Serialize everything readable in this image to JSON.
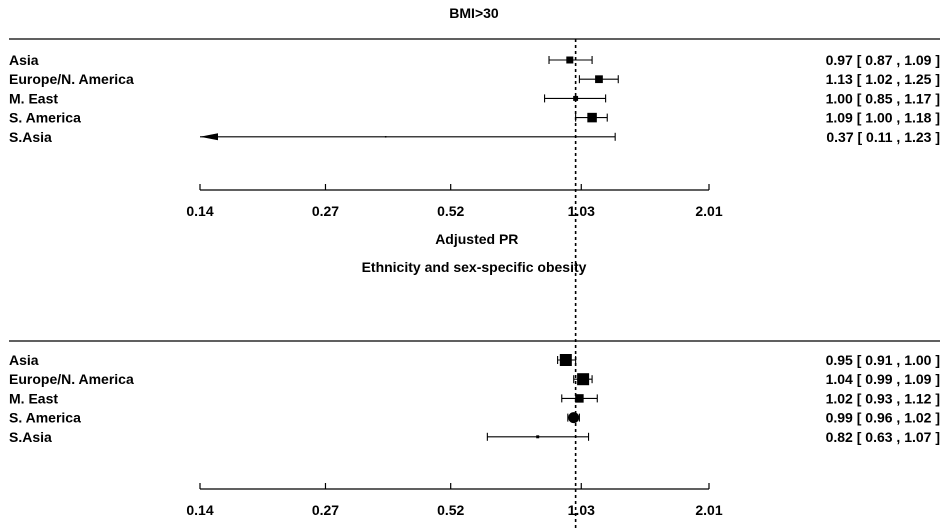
{
  "chart_data": [
    {
      "type": "forest",
      "title": "BMI>30",
      "xlabel": "Adjusted PR",
      "x_scale": "log",
      "xticks": [
        "0.14",
        "0.27",
        "0.52",
        "1.03",
        "2.01"
      ],
      "reference_line": 1.0,
      "rows": [
        {
          "label": "Asia",
          "estimate": 0.97,
          "lower": 0.87,
          "upper": 1.09,
          "text": "0.97 [ 0.87 , 1.09 ]"
        },
        {
          "label": "Europe/N. America",
          "estimate": 1.13,
          "lower": 1.02,
          "upper": 1.25,
          "text": "1.13 [ 1.02 , 1.25 ]"
        },
        {
          "label": "M. East",
          "estimate": 1.0,
          "lower": 0.85,
          "upper": 1.17,
          "text": "1.00 [ 0.85 , 1.17 ]"
        },
        {
          "label": "S. America",
          "estimate": 1.09,
          "lower": 1.0,
          "upper": 1.18,
          "text": "1.09 [ 1.00 , 1.18 ]"
        },
        {
          "label": "S.Asia",
          "estimate": 0.37,
          "lower": 0.11,
          "upper": 1.23,
          "text": "0.37 [ 0.11 , 1.23 ]"
        }
      ]
    },
    {
      "type": "forest",
      "title": "Ethnicity and sex-specific obesity",
      "xlabel": "Adjusted PR",
      "x_scale": "log",
      "xticks": [
        "0.14",
        "0.27",
        "0.52",
        "1.03",
        "2.01"
      ],
      "reference_line": 1.0,
      "rows": [
        {
          "label": "Asia",
          "estimate": 0.95,
          "lower": 0.91,
          "upper": 1.0,
          "text": "0.95 [ 0.91 , 1.00 ]"
        },
        {
          "label": "Europe/N. America",
          "estimate": 1.04,
          "lower": 0.99,
          "upper": 1.09,
          "text": "1.04 [ 0.99 , 1.09 ]"
        },
        {
          "label": "M. East",
          "estimate": 1.02,
          "lower": 0.93,
          "upper": 1.12,
          "text": "1.02 [ 0.93 , 1.12 ]"
        },
        {
          "label": "S. America",
          "estimate": 0.99,
          "lower": 0.96,
          "upper": 1.02,
          "text": "0.99 [ 0.96 , 1.02 ]"
        },
        {
          "label": "S.Asia",
          "estimate": 0.82,
          "lower": 0.63,
          "upper": 1.07,
          "text": "0.82 [ 0.63 , 1.07 ]"
        }
      ]
    }
  ]
}
